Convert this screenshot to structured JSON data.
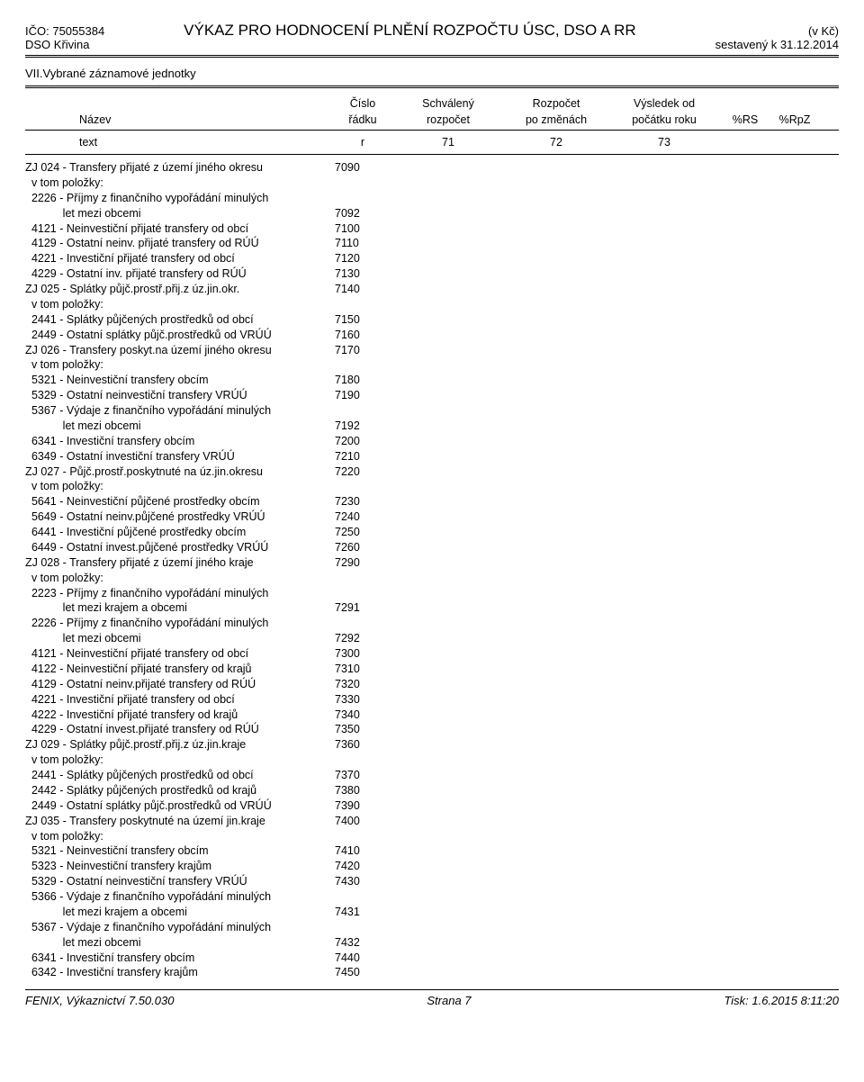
{
  "header": {
    "ico": "IČO: 75055384",
    "org": "DSO Křivina",
    "title": "VÝKAZ PRO HODNOCENÍ PLNĚNÍ ROZPOČTU ÚSC, DSO A RR",
    "currency": "(v Kč)",
    "compiled": "sestavený k 31.12.2014"
  },
  "section_title": "VII.Vybrané záznamové jednotky",
  "columns": {
    "name_l1": "",
    "name_l2": "Název",
    "col1_l1": "Číslo",
    "col1_l2": "řádku",
    "col2_l1": "Schválený",
    "col2_l2": "rozpočet",
    "col3_l1": "Rozpočet",
    "col3_l2": "po změnách",
    "col4_l1": "Výsledek od",
    "col4_l2": "počátku roku",
    "col5": "%RS",
    "col6": "%RpZ"
  },
  "textrow": {
    "text": "text",
    "r": "r",
    "c71": "71",
    "c72": "72",
    "c73": "73"
  },
  "rows": [
    {
      "label": "ZJ 024 - Transfery přijaté z území jiného okresu",
      "num": "7090"
    },
    {
      "label": "  v tom položky:",
      "num": ""
    },
    {
      "label": "  2226 - Příjmy z finančního vypořádání minulých",
      "num": ""
    },
    {
      "label": "            let mezi obcemi",
      "num": "7092"
    },
    {
      "label": "  4121 - Neinvestiční přijaté transfery od obcí",
      "num": "7100"
    },
    {
      "label": "  4129 - Ostatní neinv. přijaté transfery od RÚÚ",
      "num": "7110"
    },
    {
      "label": "  4221 - Investiční přijaté transfery od obcí",
      "num": "7120"
    },
    {
      "label": "  4229 - Ostatní inv. přijaté transfery od RÚÚ",
      "num": "7130"
    },
    {
      "label": "ZJ 025 - Splátky půjč.prostř.přij.z úz.jin.okr.",
      "num": "7140"
    },
    {
      "label": "  v tom položky:",
      "num": ""
    },
    {
      "label": "  2441 - Splátky půjčených prostředků od obcí",
      "num": "7150"
    },
    {
      "label": "  2449 - Ostatní splátky půjč.prostředků od VRÚÚ",
      "num": "7160"
    },
    {
      "label": "ZJ 026 - Transfery poskyt.na území jiného okresu",
      "num": "7170"
    },
    {
      "label": "  v tom položky:",
      "num": ""
    },
    {
      "label": "  5321 - Neinvestiční transfery obcím",
      "num": "7180"
    },
    {
      "label": "  5329 - Ostatní neinvestiční transfery VRÚÚ",
      "num": "7190"
    },
    {
      "label": "  5367 - Výdaje z finančního vypořádání minulých",
      "num": ""
    },
    {
      "label": "            let mezi obcemi",
      "num": "7192"
    },
    {
      "label": "  6341 - Investiční transfery obcím",
      "num": "7200"
    },
    {
      "label": "  6349 - Ostatní investiční transfery VRÚÚ",
      "num": "7210"
    },
    {
      "label": "ZJ 027 - Půjč.prostř.poskytnuté na úz.jin.okresu",
      "num": "7220"
    },
    {
      "label": "  v tom položky:",
      "num": ""
    },
    {
      "label": "  5641 - Neinvestiční půjčené prostředky obcím",
      "num": "7230"
    },
    {
      "label": "  5649 - Ostatní neinv.půjčené prostředky VRÚÚ",
      "num": "7240"
    },
    {
      "label": "  6441 - Investiční půjčené prostředky obcím",
      "num": "7250"
    },
    {
      "label": "  6449 - Ostatní invest.půjčené prostředky VRÚÚ",
      "num": "7260"
    },
    {
      "label": "ZJ 028 - Transfery přijaté z území jiného kraje",
      "num": "7290"
    },
    {
      "label": "  v tom položky:",
      "num": ""
    },
    {
      "label": "  2223 - Příjmy z finančního vypořádání minulých",
      "num": ""
    },
    {
      "label": "            let mezi krajem a obcemi",
      "num": "7291"
    },
    {
      "label": "  2226 - Příjmy z finančního vypořádání minulých",
      "num": ""
    },
    {
      "label": "            let mezi obcemi",
      "num": "7292"
    },
    {
      "label": "  4121 - Neinvestiční přijaté transfery od obcí",
      "num": "7300"
    },
    {
      "label": "  4122 - Neinvestiční přijaté transfery od krajů",
      "num": "7310"
    },
    {
      "label": "  4129 - Ostatní neinv.přijaté transfery od RÚÚ",
      "num": "7320"
    },
    {
      "label": "  4221 - Investiční přijaté transfery od obcí",
      "num": "7330"
    },
    {
      "label": "  4222 - Investiční přijaté transfery od krajů",
      "num": "7340"
    },
    {
      "label": "  4229 - Ostatní invest.přijaté transfery od RÚÚ",
      "num": "7350"
    },
    {
      "label": "ZJ 029 - Splátky půjč.prostř.přij.z úz.jin.kraje",
      "num": "7360"
    },
    {
      "label": "  v tom položky:",
      "num": ""
    },
    {
      "label": "  2441 - Splátky půjčených prostředků od obcí",
      "num": "7370"
    },
    {
      "label": "  2442 - Splátky půjčených prostředků od krajů",
      "num": "7380"
    },
    {
      "label": "  2449 - Ostatní splátky půjč.prostředků od VRÚÚ",
      "num": "7390"
    },
    {
      "label": "ZJ 035 - Transfery poskytnuté na území jin.kraje",
      "num": "7400"
    },
    {
      "label": "  v tom položky:",
      "num": ""
    },
    {
      "label": "  5321 - Neinvestiční transfery obcím",
      "num": "7410"
    },
    {
      "label": "  5323 - Neinvestiční transfery krajům",
      "num": "7420"
    },
    {
      "label": "  5329 - Ostatní neinvestiční transfery VRÚÚ",
      "num": "7430"
    },
    {
      "label": "  5366 - Výdaje z finančního vypořádání minulých",
      "num": ""
    },
    {
      "label": "            let mezi krajem a obcemi",
      "num": "7431"
    },
    {
      "label": "  5367 - Výdaje z finančního vypořádání minulých",
      "num": ""
    },
    {
      "label": "            let mezi obcemi",
      "num": "7432"
    },
    {
      "label": "  6341 - Investiční transfery obcím",
      "num": "7440"
    },
    {
      "label": "  6342 - Investiční transfery krajům",
      "num": "7450"
    }
  ],
  "footer": {
    "left": "FENIX, Výkaznictví 7.50.030",
    "center": "Strana 7",
    "right": "Tisk: 1.6.2015 8:11:20"
  }
}
